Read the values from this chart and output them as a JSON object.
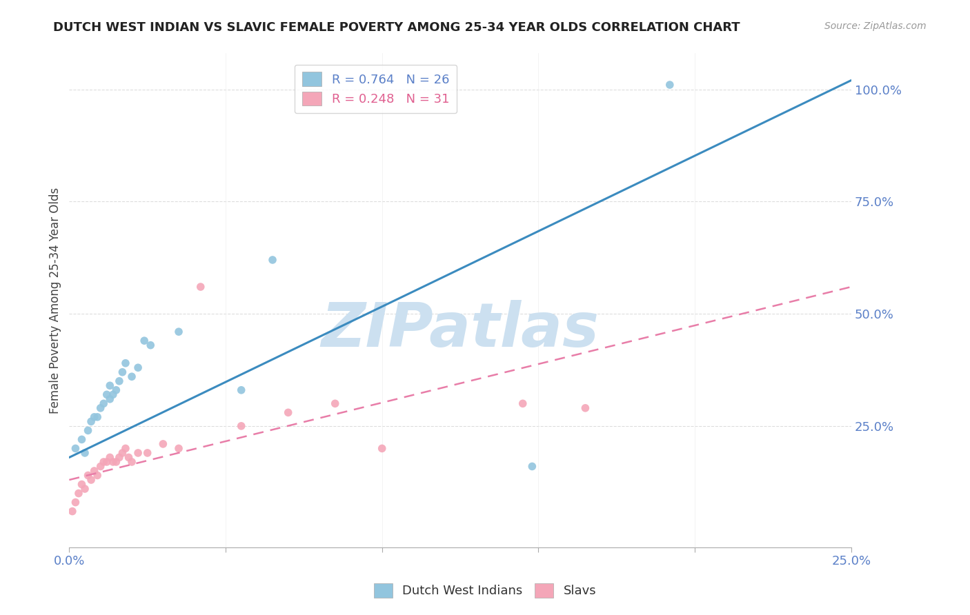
{
  "title": "DUTCH WEST INDIAN VS SLAVIC FEMALE POVERTY AMONG 25-34 YEAR OLDS CORRELATION CHART",
  "source": "Source: ZipAtlas.com",
  "ylabel": "Female Poverty Among 25-34 Year Olds",
  "xlim": [
    0.0,
    0.25
  ],
  "ylim": [
    -0.02,
    1.08
  ],
  "ytick_vals": [
    0.0,
    0.25,
    0.5,
    0.75,
    1.0
  ],
  "ytick_labels": [
    "",
    "25.0%",
    "50.0%",
    "75.0%",
    "100.0%"
  ],
  "xtick_vals": [
    0.0,
    0.05,
    0.1,
    0.15,
    0.2,
    0.25
  ],
  "xtick_labels": [
    "0.0%",
    "",
    "",
    "",
    "",
    "25.0%"
  ],
  "blue_color": "#92c5de",
  "pink_color": "#f4a6b8",
  "line_blue": "#3b8bbf",
  "line_pink": "#e87da8",
  "tick_color": "#5b80c8",
  "legend_r_blue": "0.764",
  "legend_n_blue": "26",
  "legend_r_pink": "0.248",
  "legend_n_pink": "31",
  "watermark_text": "ZIPatlas",
  "watermark_color": "#cce0f0",
  "dutch_x": [
    0.002,
    0.004,
    0.005,
    0.006,
    0.007,
    0.008,
    0.009,
    0.01,
    0.011,
    0.012,
    0.013,
    0.013,
    0.014,
    0.015,
    0.016,
    0.017,
    0.018,
    0.02,
    0.022,
    0.024,
    0.026,
    0.035,
    0.055,
    0.065,
    0.148,
    0.192
  ],
  "dutch_y": [
    0.2,
    0.22,
    0.19,
    0.24,
    0.26,
    0.27,
    0.27,
    0.29,
    0.3,
    0.32,
    0.31,
    0.34,
    0.32,
    0.33,
    0.35,
    0.37,
    0.39,
    0.36,
    0.38,
    0.44,
    0.43,
    0.46,
    0.33,
    0.62,
    0.16,
    1.01
  ],
  "slavic_x": [
    0.001,
    0.002,
    0.003,
    0.004,
    0.005,
    0.006,
    0.007,
    0.008,
    0.009,
    0.01,
    0.011,
    0.012,
    0.013,
    0.014,
    0.015,
    0.016,
    0.017,
    0.018,
    0.019,
    0.02,
    0.022,
    0.025,
    0.03,
    0.035,
    0.042,
    0.055,
    0.07,
    0.085,
    0.1,
    0.145,
    0.165
  ],
  "slavic_y": [
    0.06,
    0.08,
    0.1,
    0.12,
    0.11,
    0.14,
    0.13,
    0.15,
    0.14,
    0.16,
    0.17,
    0.17,
    0.18,
    0.17,
    0.17,
    0.18,
    0.19,
    0.2,
    0.18,
    0.17,
    0.19,
    0.19,
    0.21,
    0.2,
    0.56,
    0.25,
    0.28,
    0.3,
    0.2,
    0.3,
    0.29
  ],
  "blue_line_x0": 0.0,
  "blue_line_y0": 0.18,
  "blue_line_x1": 0.25,
  "blue_line_y1": 1.02,
  "pink_line_x0": 0.0,
  "pink_line_y0": 0.13,
  "pink_line_x1": 0.25,
  "pink_line_y1": 0.56
}
